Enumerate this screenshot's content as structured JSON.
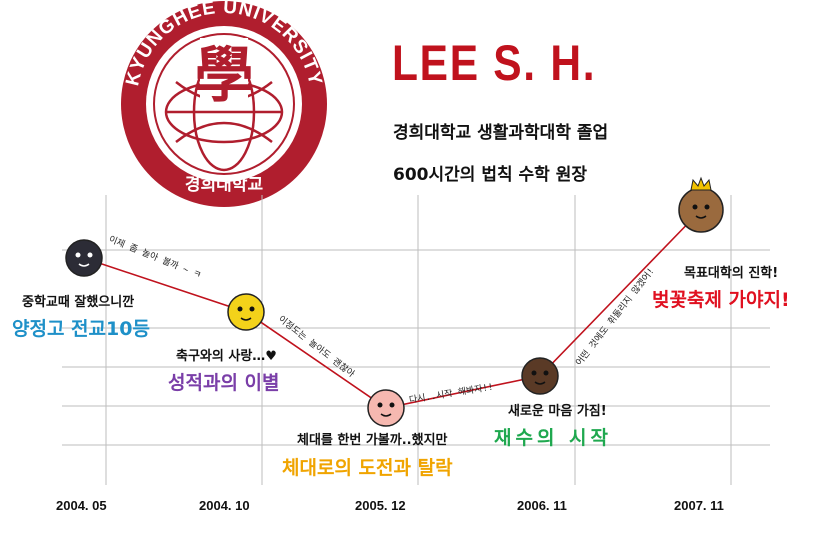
{
  "seal": {
    "arc_text": "KYUNGHEE UNIVERSITY",
    "bottom_text": "경희대학교"
  },
  "profile": {
    "name": "LEE S. H.",
    "line1": "경희대학교 생활과학대학 졸업",
    "line2": "600시간의 법칙 수학 원장"
  },
  "colors": {
    "brand": "#b01e2e",
    "line": "#c0121d",
    "blue": "#1e90c8",
    "purple": "#7a3ea8",
    "orange": "#f0a400",
    "green": "#1fa84f",
    "red": "#e01020"
  },
  "chart_data": {
    "type": "line",
    "categories": [
      "2004. 05",
      "2004. 10",
      "2005. 12",
      "2006. 11",
      "2007. 11"
    ],
    "grid": true,
    "points": [
      {
        "x": "2004. 05",
        "caption": "중학교때 잘했으니깐",
        "title": "양정고 전교10등",
        "title_color": "#1e90c8",
        "note": "이제 좀 놀아 볼까 ~ ㅋ",
        "icon": "black-cat-character-icon"
      },
      {
        "x": "2004. 10",
        "caption": "축구와의 사랑…♥",
        "title": "성적과의 이별",
        "title_color": "#7a3ea8",
        "note": "이정도는 놀아도 괜찮아",
        "icon": "yellow-bunny-character-icon"
      },
      {
        "x": "2005. 12",
        "caption": "체대를 한번 가볼까..했지만",
        "title": "체대로의 도전과 탈락",
        "title_color": "#f0a400",
        "note": "다시..시작 해봐자!!",
        "icon": "peach-character-icon"
      },
      {
        "x": "2006. 11",
        "caption": "새로운 마음 가짐!",
        "title": "재수의 시작",
        "title_color": "#1fa84f",
        "note": "어떤 것에도 휘둘리지 않겠어!",
        "icon": "brown-bear-character-icon"
      },
      {
        "x": "2007. 11",
        "caption": "목표대학의 진학!",
        "title": "벚꽃축제 가야지!",
        "title_color": "#e01020",
        "note": "",
        "icon": "king-bear-character-icon"
      }
    ]
  }
}
